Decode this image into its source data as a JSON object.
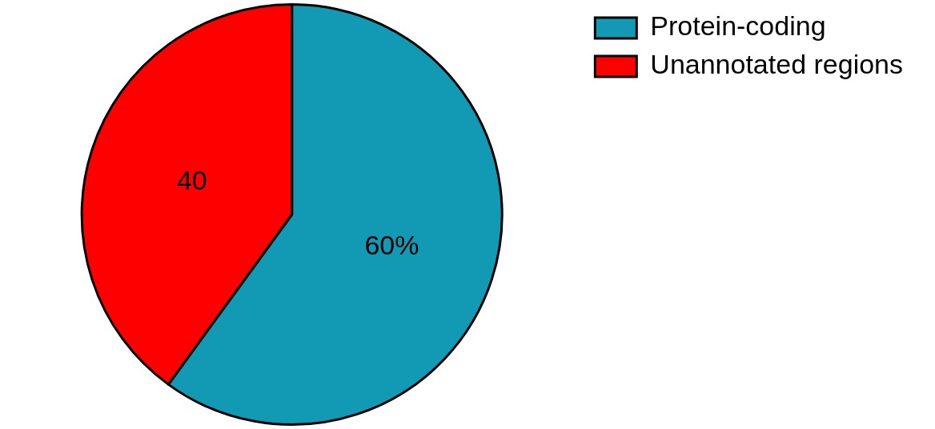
{
  "chart_data": {
    "type": "pie",
    "categories": [
      "Protein-coding",
      "Unannotated regions"
    ],
    "values": [
      60,
      40
    ],
    "colors": [
      "#129ab5",
      "#fe0000"
    ],
    "value_labels": [
      "60%",
      "40"
    ],
    "legend": "top right"
  }
}
